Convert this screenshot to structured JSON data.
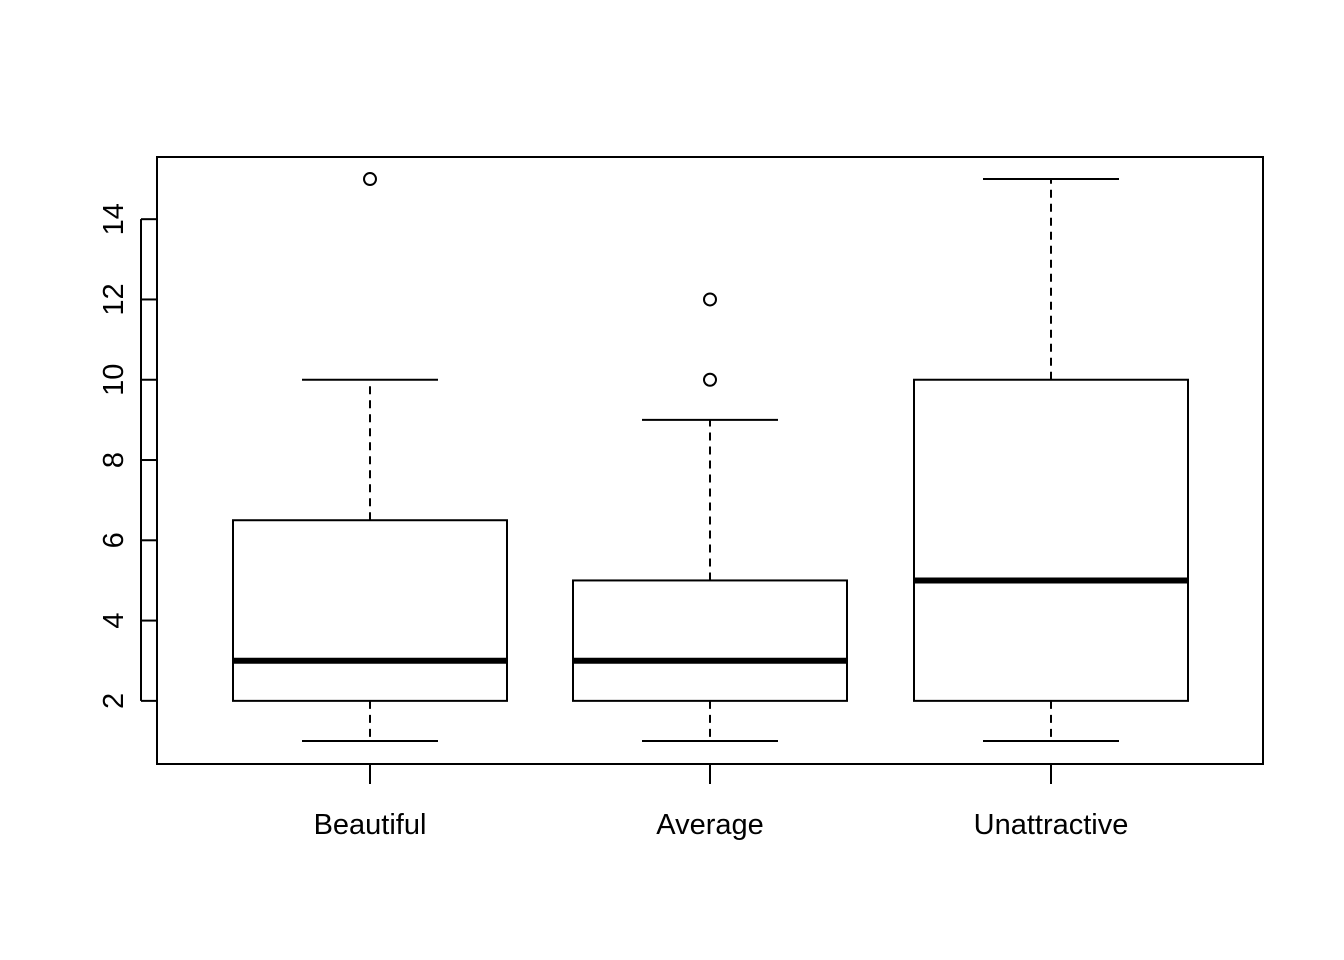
{
  "chart_data": {
    "type": "boxplot",
    "title": "",
    "xlabel": "",
    "ylabel": "",
    "ylim": [
      0.5,
      15.6
    ],
    "yticks": [
      2,
      4,
      6,
      8,
      10,
      12,
      14
    ],
    "categories": [
      "Beautiful",
      "Average",
      "Unattractive"
    ],
    "boxes": [
      {
        "name": "Beautiful",
        "min": 1,
        "q1": 2,
        "median": 3,
        "q3": 6.5,
        "max": 10,
        "outliers": [
          15
        ]
      },
      {
        "name": "Average",
        "min": 1,
        "q1": 2,
        "median": 3,
        "q3": 5,
        "max": 9,
        "outliers": [
          10,
          12
        ]
      },
      {
        "name": "Unattractive",
        "min": 1,
        "q1": 2,
        "median": 5,
        "q3": 10,
        "max": 15,
        "outliers": []
      }
    ],
    "colors": {
      "stroke": "#000000",
      "background": "#ffffff"
    }
  }
}
